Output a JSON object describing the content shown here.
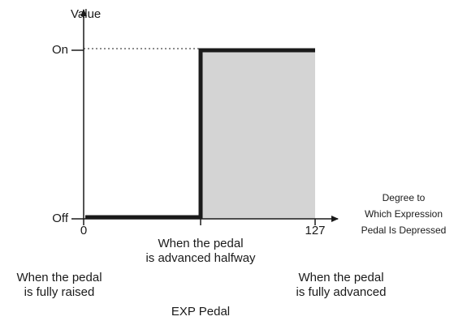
{
  "y_axis": {
    "label": "Value",
    "ticks": [
      "On",
      "Off"
    ]
  },
  "x_axis": {
    "label": [
      "Degree to",
      "Which Expression",
      "Pedal Is Depressed"
    ],
    "ticks": [
      "0",
      "127"
    ],
    "title": "EXP Pedal"
  },
  "annotations": [
    {
      "lines": [
        "When the pedal",
        "is fully raised"
      ]
    },
    {
      "lines": [
        "When the pedal",
        "is advanced halfway"
      ]
    },
    {
      "lines": [
        "When the pedal",
        "is fully advanced"
      ]
    }
  ]
}
